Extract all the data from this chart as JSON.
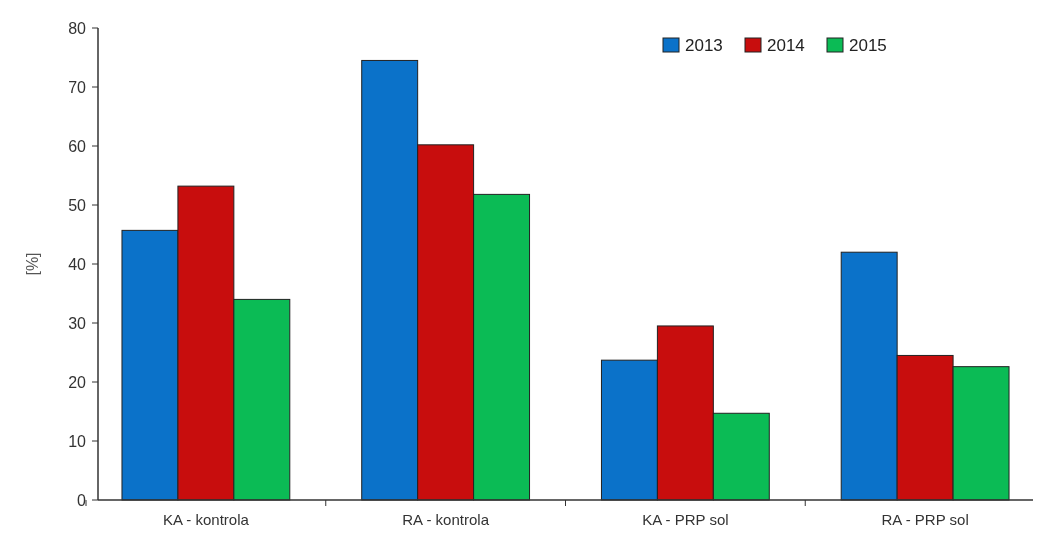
{
  "chart_data": {
    "type": "bar",
    "ylabel": "[%]",
    "categories": [
      "KA - kontrola",
      "RA - kontrola",
      "KA - PRP sol",
      "RA - PRP sol"
    ],
    "series": [
      {
        "name": "2013",
        "color": "#0b72c9",
        "values": [
          45.7,
          74.5,
          23.7,
          42
        ]
      },
      {
        "name": "2014",
        "color": "#c80d0d",
        "values": [
          53.2,
          60.2,
          29.5,
          24.5
        ]
      },
      {
        "name": "2015",
        "color": "#0bbb55",
        "values": [
          34,
          51.8,
          14.7,
          22.6
        ]
      }
    ],
    "ylim": [
      0,
      80
    ],
    "yticks": [
      0,
      10,
      20,
      30,
      40,
      50,
      60,
      70,
      80
    ],
    "grid": false,
    "legend": "top right"
  }
}
